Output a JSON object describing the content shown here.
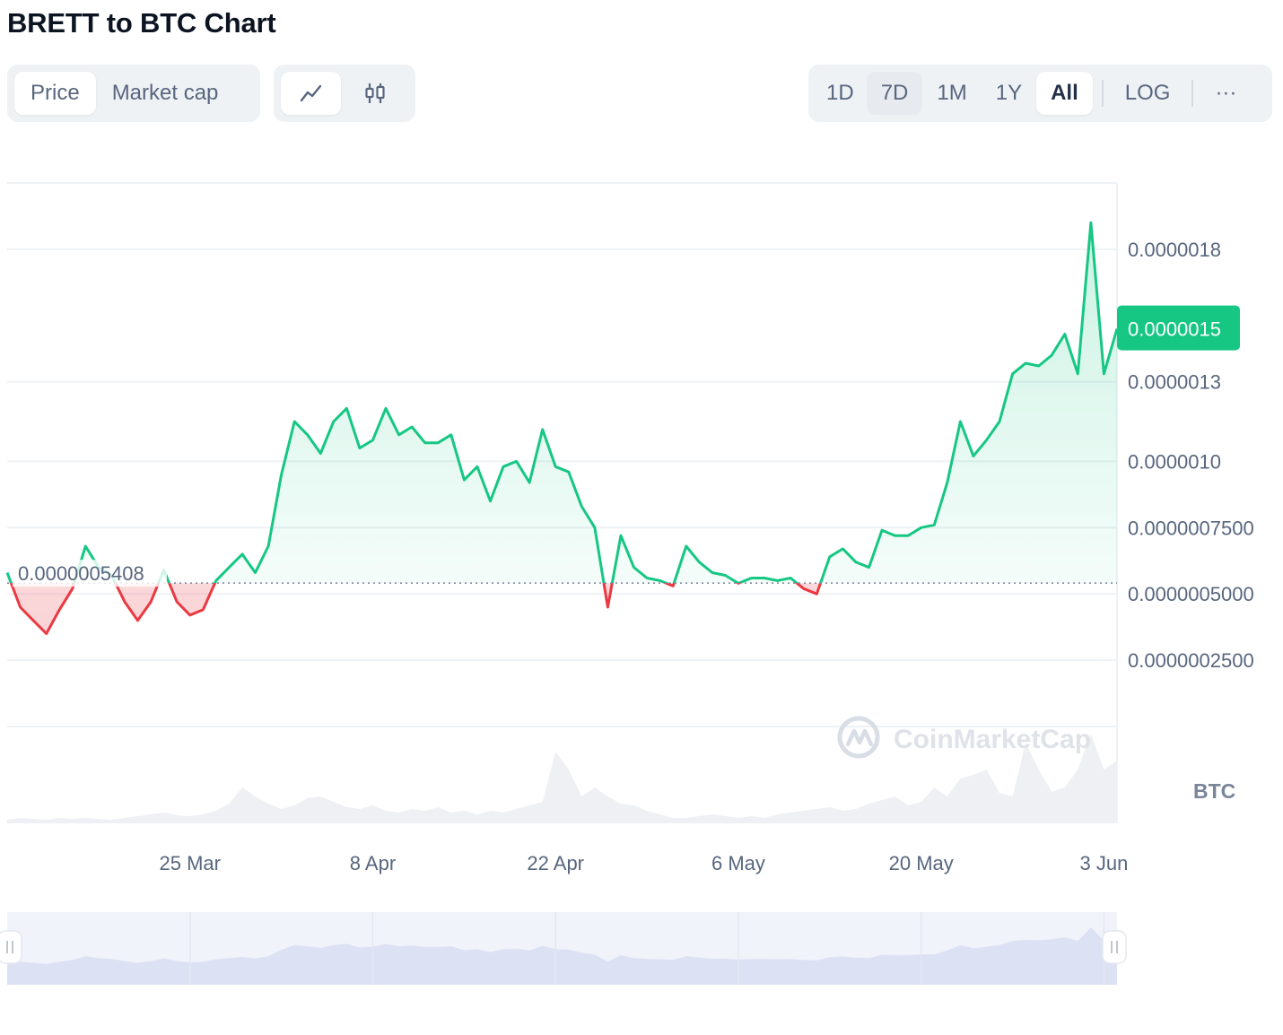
{
  "title": "BRETT to BTC Chart",
  "metric_tabs": [
    "Price",
    "Market cap"
  ],
  "chart_type_icons": [
    "line-chart-icon",
    "candlestick-icon"
  ],
  "range_tabs": [
    "1D",
    "7D",
    "1M",
    "1Y",
    "All"
  ],
  "log_label": "LOG",
  "more_label": "···",
  "watermark": "CoinMarketCap",
  "currency_label": "BTC",
  "colors": {
    "up": "#16c784",
    "down": "#ea3943",
    "grid": "#eff2f5",
    "text": "#58667e",
    "badge_text": "#ffffff"
  },
  "chart_data": {
    "type": "line",
    "title": "BRETT to BTC Chart",
    "baseline": 5.408e-07,
    "baseline_label": "0.0000005408",
    "current_label": "0.0000015",
    "current_value": 1.5e-06,
    "y_ticks": [
      {
        "label": "0.0000018",
        "value": 1.8e-06
      },
      {
        "label": "0.0000013",
        "value": 1.3e-06
      },
      {
        "label": "0.0000010",
        "value": 1e-06
      },
      {
        "label": "0.0000007500",
        "value": 7.5e-07
      },
      {
        "label": "0.0000005000",
        "value": 5e-07
      },
      {
        "label": "0.0000002500",
        "value": 2.5e-07
      }
    ],
    "ylim": [
      0,
      2.05e-06
    ],
    "x_ticks": [
      "25 Mar",
      "8 Apr",
      "22 Apr",
      "6 May",
      "20 May",
      "3 Jun"
    ],
    "x": [
      "11 Mar",
      "12 Mar",
      "13 Mar",
      "14 Mar",
      "15 Mar",
      "16 Mar",
      "17 Mar",
      "18 Mar",
      "19 Mar",
      "20 Mar",
      "21 Mar",
      "22 Mar",
      "23 Mar",
      "24 Mar",
      "25 Mar",
      "26 Mar",
      "27 Mar",
      "28 Mar",
      "29 Mar",
      "30 Mar",
      "31 Mar",
      "1 Apr",
      "2 Apr",
      "3 Apr",
      "4 Apr",
      "5 Apr",
      "6 Apr",
      "7 Apr",
      "8 Apr",
      "9 Apr",
      "10 Apr",
      "11 Apr",
      "12 Apr",
      "13 Apr",
      "14 Apr",
      "15 Apr",
      "16 Apr",
      "17 Apr",
      "18 Apr",
      "19 Apr",
      "20 Apr",
      "21 Apr",
      "22 Apr",
      "23 Apr",
      "24 Apr",
      "25 Apr",
      "26 Apr",
      "27 Apr",
      "28 Apr",
      "29 Apr",
      "30 Apr",
      "1 May",
      "2 May",
      "3 May",
      "4 May",
      "5 May",
      "6 May",
      "7 May",
      "8 May",
      "9 May",
      "10 May",
      "11 May",
      "12 May",
      "13 May",
      "14 May",
      "15 May",
      "16 May",
      "17 May",
      "18 May",
      "19 May",
      "20 May",
      "21 May",
      "22 May",
      "23 May",
      "24 May",
      "25 May",
      "26 May",
      "27 May",
      "28 May",
      "29 May",
      "30 May",
      "31 May",
      "1 Jun",
      "2 Jun",
      "3 Jun",
      "3 Jun"
    ],
    "values": [
      5.8e-07,
      4.5e-07,
      4e-07,
      3.5e-07,
      4.4e-07,
      5.2e-07,
      6.8e-07,
      6e-07,
      5.7e-07,
      4.7e-07,
      4e-07,
      4.7e-07,
      5.9e-07,
      4.7e-07,
      4.2e-07,
      4.4e-07,
      5.5e-07,
      6e-07,
      6.5e-07,
      5.8e-07,
      6.8e-07,
      9.5e-07,
      1.15e-06,
      1.1e-06,
      1.03e-06,
      1.15e-06,
      1.2e-06,
      1.05e-06,
      1.08e-06,
      1.2e-06,
      1.1e-06,
      1.13e-06,
      1.07e-06,
      1.07e-06,
      1.1e-06,
      9.3e-07,
      9.8e-07,
      8.5e-07,
      9.8e-07,
      1e-06,
      9.2e-07,
      1.12e-06,
      9.8e-07,
      9.6e-07,
      8.3e-07,
      7.5e-07,
      4.5e-07,
      7.2e-07,
      6e-07,
      5.6e-07,
      5.5e-07,
      5.3e-07,
      6.8e-07,
      6.2e-07,
      5.8e-07,
      5.7e-07,
      5.4e-07,
      5.6e-07,
      5.6e-07,
      5.5e-07,
      5.6e-07,
      5.2e-07,
      5e-07,
      6.4e-07,
      6.7e-07,
      6.2e-07,
      6e-07,
      7.4e-07,
      7.2e-07,
      7.2e-07,
      7.5e-07,
      7.6e-07,
      9.2e-07,
      1.15e-06,
      1.02e-06,
      1.08e-06,
      1.15e-06,
      1.33e-06,
      1.37e-06,
      1.36e-06,
      1.4e-06,
      1.48e-06,
      1.33e-06,
      1.9e-06,
      1.33e-06,
      1.5e-06
    ]
  }
}
